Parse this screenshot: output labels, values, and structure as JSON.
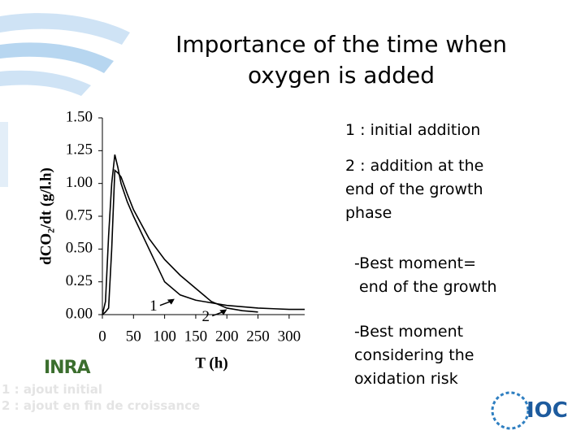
{
  "slide": {
    "title_lines": [
      "Importance of the time when",
      "oxygen is added"
    ],
    "notes": [
      {
        "lines": [
          "1 : initial addition"
        ]
      },
      {
        "lines": [
          "2 : addition at the",
          "end of the growth",
          "phase"
        ]
      },
      {
        "lines": [
          "-Best moment=",
          " end of the growth"
        ]
      },
      {
        "lines": [
          "-Best moment",
          "considering the",
          "oxidation risk"
        ]
      }
    ],
    "footer": [
      "1 : ajout initial",
      "2 : ajout en fin de croissance"
    ],
    "logos": [
      "INRA",
      "IOC"
    ]
  },
  "chart_data": {
    "type": "line",
    "x_label": "T (h)",
    "y_label": "dCO₂/dt (g/l.h)",
    "x": [
      0,
      5,
      10,
      15,
      20,
      25,
      30,
      40,
      50,
      75,
      100,
      125,
      150,
      175,
      200,
      225,
      250,
      275,
      300,
      325
    ],
    "series": [
      {
        "name": "1",
        "color": "#000000",
        "values": [
          0,
          0.1,
          0.6,
          1.0,
          1.22,
          1.12,
          1.0,
          0.86,
          0.75,
          0.5,
          0.25,
          0.15,
          0.11,
          0.09,
          0.07,
          0.06,
          0.05,
          0.045,
          0.04,
          0.04
        ]
      },
      {
        "name": "2",
        "color": "#000000",
        "values": [
          0,
          0.02,
          0.05,
          0.5,
          1.1,
          1.08,
          1.05,
          0.92,
          0.8,
          0.58,
          0.42,
          0.3,
          0.2,
          0.1,
          0.05,
          0.03,
          0.02,
          null,
          null,
          null
        ]
      }
    ],
    "annotations": [
      {
        "text": "1",
        "x": 116,
        "y": 0.12
      },
      {
        "text": "2",
        "x": 200,
        "y": 0.04
      }
    ],
    "xlim": [
      0,
      325
    ],
    "ylim": [
      0,
      1.5
    ],
    "xticks": [
      0,
      50,
      100,
      150,
      200,
      250,
      300
    ],
    "yticks": [
      {
        "value": 0,
        "label": "0.00"
      },
      {
        "value": 0.25,
        "label": "0.25"
      },
      {
        "value": 0.5,
        "label": "0.50"
      },
      {
        "value": 0.75,
        "label": "0.75"
      },
      {
        "value": 1,
        "label": "1.00"
      },
      {
        "value": 1.25,
        "label": "1.25"
      },
      {
        "value": 1.5,
        "label": "1.50"
      }
    ]
  }
}
